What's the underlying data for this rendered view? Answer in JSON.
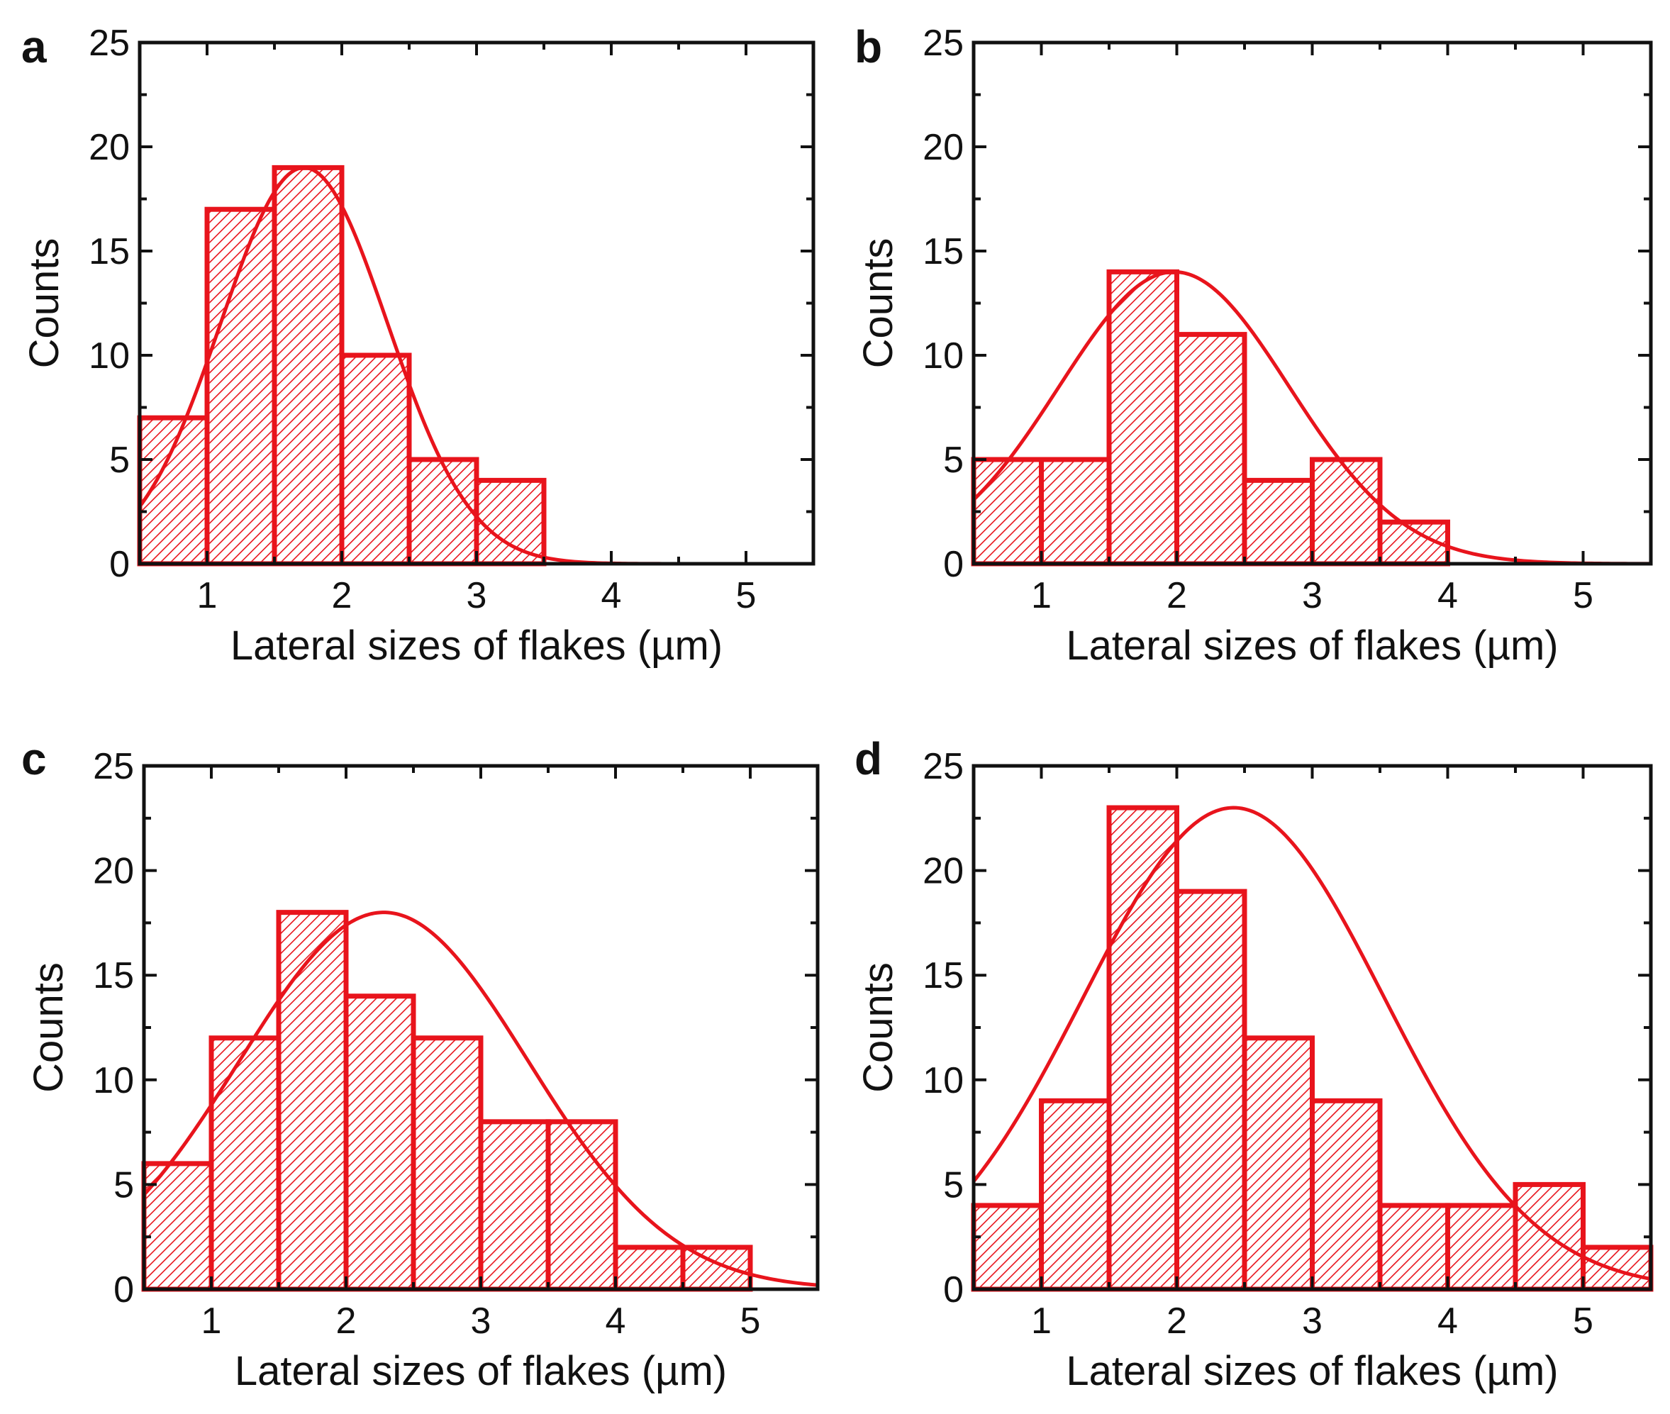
{
  "chart_data": [
    {
      "panel": "a",
      "type": "bar",
      "bin_edges": [
        0.5,
        1.0,
        1.5,
        2.0,
        2.5,
        3.0,
        3.5
      ],
      "values": [
        7,
        17,
        19,
        10,
        5,
        4
      ],
      "fit": {
        "type": "gaussian",
        "peak": 19,
        "mean": 1.72,
        "sigma": 0.62
      },
      "xlabel": "Lateral sizes of flakes (µm)",
      "ylabel": "Counts",
      "xlim": [
        0.5,
        5.5
      ],
      "ylim": [
        0,
        25
      ],
      "xticks": [
        1,
        2,
        3,
        4,
        5
      ],
      "yticks": [
        0,
        5,
        10,
        15,
        20,
        25
      ]
    },
    {
      "panel": "b",
      "type": "bar",
      "bin_edges": [
        0.5,
        1.0,
        1.5,
        2.0,
        2.5,
        3.0,
        3.5,
        4.0
      ],
      "values": [
        5,
        5,
        14,
        11,
        4,
        5,
        2
      ],
      "fit": {
        "type": "gaussian",
        "peak": 14,
        "mean": 1.98,
        "sigma": 0.85
      },
      "xlabel": "Lateral sizes of flakes (µm)",
      "ylabel": "Counts",
      "xlim": [
        0.5,
        5.5
      ],
      "ylim": [
        0,
        25
      ],
      "xticks": [
        1,
        2,
        3,
        4,
        5
      ],
      "yticks": [
        0,
        5,
        10,
        15,
        20,
        25
      ]
    },
    {
      "panel": "c",
      "type": "bar",
      "bin_edges": [
        0.5,
        1.0,
        1.5,
        2.0,
        2.5,
        3.0,
        3.5,
        4.0,
        4.5,
        5.0
      ],
      "values": [
        6,
        12,
        18,
        14,
        12,
        8,
        8,
        2,
        2
      ],
      "fit": {
        "type": "gaussian",
        "peak": 18,
        "mean": 2.28,
        "sigma": 1.07
      },
      "xlabel": "Lateral sizes of flakes (µm)",
      "ylabel": "Counts",
      "xlim": [
        0.5,
        5.5
      ],
      "ylim": [
        0,
        25
      ],
      "xticks": [
        1,
        2,
        3,
        4,
        5
      ],
      "yticks": [
        0,
        5,
        10,
        15,
        20,
        25
      ]
    },
    {
      "panel": "d",
      "type": "bar",
      "bin_edges": [
        0.5,
        1.0,
        1.5,
        2.0,
        2.5,
        3.0,
        3.5,
        4.0,
        4.5,
        5.0,
        5.5
      ],
      "values": [
        4,
        9,
        23,
        19,
        12,
        9,
        4,
        4,
        5,
        2
      ],
      "fit": {
        "type": "gaussian",
        "peak": 23,
        "mean": 2.42,
        "sigma": 1.11
      },
      "xlabel": "Lateral sizes of flakes (µm)",
      "ylabel": "Counts",
      "xlim": [
        0.5,
        5.5
      ],
      "ylim": [
        0,
        25
      ],
      "xticks": [
        1,
        2,
        3,
        4,
        5
      ],
      "yticks": [
        0,
        5,
        10,
        15,
        20,
        25
      ]
    }
  ],
  "colors": {
    "bar": "#e8141c",
    "axis": "#111111",
    "background": "#ffffff"
  }
}
